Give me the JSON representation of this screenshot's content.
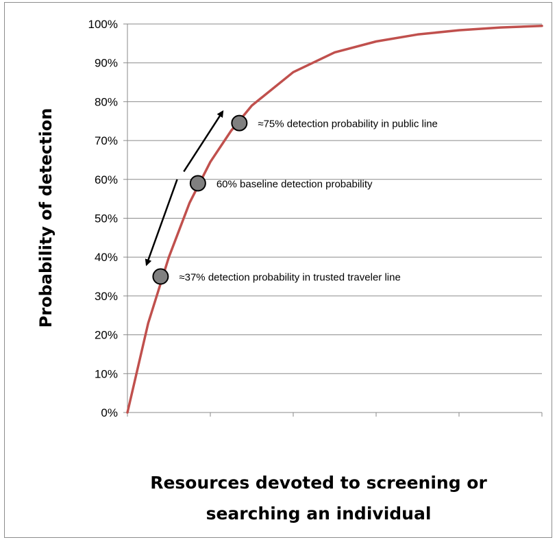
{
  "chart_data": {
    "type": "line",
    "title": "",
    "ylabel": "Probability of detection",
    "xlabel_lines": [
      "Resources devoted to screening or",
      "searching an individual"
    ],
    "ylim": [
      0,
      100
    ],
    "y_ticks": [
      "0%",
      "10%",
      "20%",
      "30%",
      "40%",
      "50%",
      "60%",
      "70%",
      "80%",
      "90%",
      "100%"
    ],
    "x_range": [
      0,
      5
    ],
    "x_tick_count": 6,
    "grid": "horizontal",
    "series": [
      {
        "color": "#c0504d",
        "function": "saturating-exponential",
        "x": [
          0,
          0.25,
          0.5,
          0.75,
          1.0,
          1.25,
          1.5,
          2.0,
          2.5,
          3.0,
          3.5,
          4.0,
          4.5,
          5.0
        ],
        "y": [
          0,
          23,
          40,
          54,
          64.5,
          72.5,
          79,
          87.6,
          92.7,
          95.5,
          97.3,
          98.4,
          99.1,
          99.5
        ]
      }
    ],
    "points": [
      {
        "x": 0.4,
        "y": 35,
        "label": "≈37% detection probability in trusted traveler line"
      },
      {
        "x": 0.85,
        "y": 59,
        "label": "60% baseline detection probability"
      },
      {
        "x": 1.35,
        "y": 74.5,
        "label": "≈75% detection probability in public line"
      }
    ],
    "point_color": "#808080",
    "arrows": [
      {
        "from": {
          "x": 0.68,
          "y": 62
        },
        "to": {
          "x": 1.15,
          "y": 77.5
        },
        "direction": "up"
      },
      {
        "from": {
          "x": 0.6,
          "y": 60
        },
        "to": {
          "x": 0.23,
          "y": 38
        },
        "direction": "down"
      }
    ]
  }
}
